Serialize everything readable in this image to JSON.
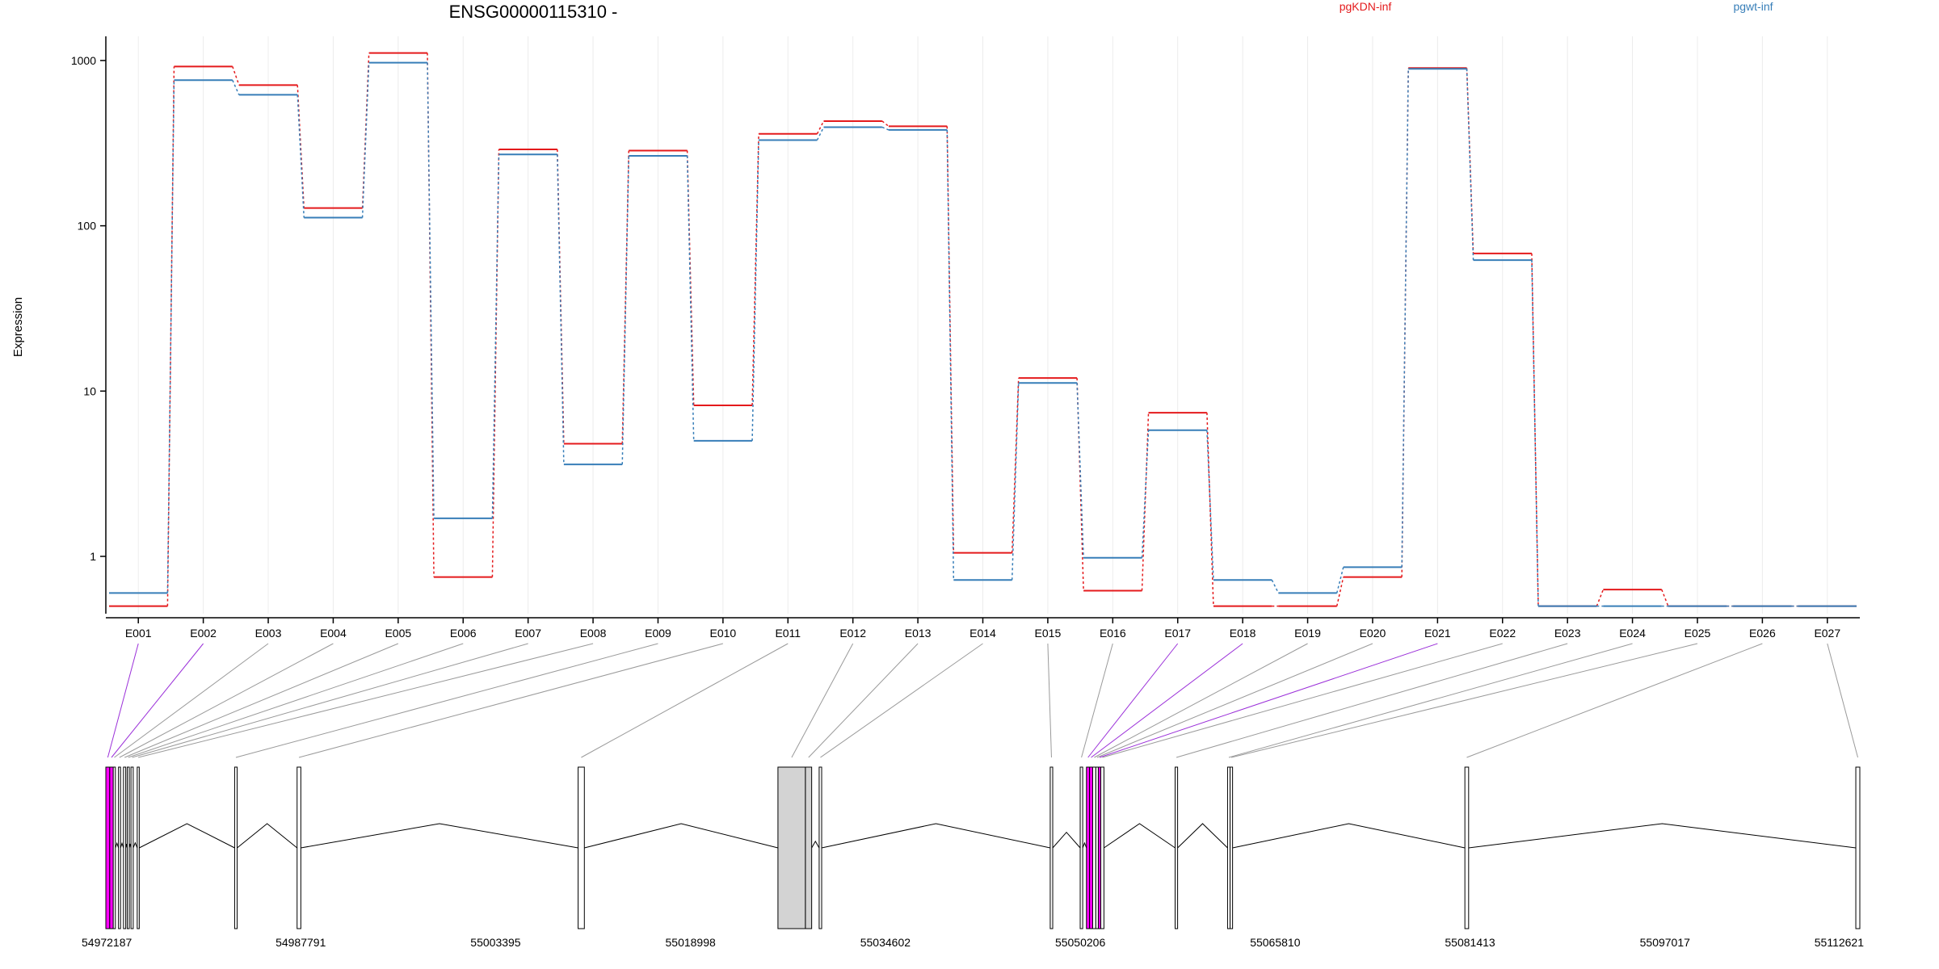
{
  "chart_data": [
    {
      "type": "line",
      "title": "ENSG00000115310 -",
      "ylabel": "Expression",
      "xlabel": "",
      "yscale": "log",
      "ylim": [
        0.45,
        1400
      ],
      "yticks": [
        "1",
        "10",
        "100",
        "1000"
      ],
      "ytick_values": [
        1,
        10,
        100,
        1000
      ],
      "grid": "vertical",
      "legend_position": "top-right",
      "categories": [
        "E001",
        "E002",
        "E003",
        "E004",
        "E005",
        "E006",
        "E007",
        "E008",
        "E009",
        "E010",
        "E011",
        "E012",
        "E013",
        "E014",
        "E015",
        "E016",
        "E017",
        "E018",
        "E019",
        "E020",
        "E021",
        "E022",
        "E023",
        "E024",
        "E025",
        "E026",
        "E027"
      ],
      "series": [
        {
          "name": "pgKDN-inf",
          "color": "#e41a1c",
          "values": [
            0.5,
            920,
            710,
            128,
            1110,
            0.75,
            290,
            4.8,
            285,
            8.2,
            360,
            430,
            400,
            1.05,
            12,
            0.62,
            7.4,
            0.5,
            0.5,
            0.75,
            900,
            68,
            0.5,
            0.63,
            0.5,
            0.5,
            0.5
          ]
        },
        {
          "name": "pgwt-inf",
          "color": "#377eb8",
          "values": [
            0.6,
            760,
            620,
            112,
            970,
            1.7,
            270,
            3.6,
            265,
            5,
            330,
            395,
            380,
            0.72,
            11.2,
            0.98,
            5.8,
            0.72,
            0.6,
            0.86,
            890,
            62,
            0.5,
            0.5,
            0.5,
            0.5,
            0.5
          ]
        }
      ]
    },
    {
      "type": "gene-structure",
      "xlim": [
        54972187,
        55112621
      ],
      "tick_labels": [
        "54972187",
        "54987791",
        "55003395",
        "55018998",
        "55034602",
        "55050206",
        "55065810",
        "55081413",
        "55097017",
        "55112621"
      ],
      "tick_values": [
        54972187,
        54987791,
        55003395,
        55018998,
        55034602,
        55050206,
        55065810,
        55081413,
        55097017,
        55112621
      ],
      "highlight_color": "#ff00ff",
      "intron_color": "#000000",
      "exons": [
        {
          "id": "E001",
          "start": 54972187,
          "end": 54972500,
          "fill": "#ff00ff"
        },
        {
          "id": "E002",
          "start": 54972500,
          "end": 54972780,
          "fill": "#ff00ff"
        },
        {
          "id": "E003",
          "start": 54972780,
          "end": 54972950,
          "fill": "#ffffff"
        },
        {
          "id": "E004",
          "start": 54973200,
          "end": 54973350,
          "fill": "#ffffff"
        },
        {
          "id": "E005",
          "start": 54973600,
          "end": 54973780,
          "fill": "#ffffff"
        },
        {
          "id": "E006",
          "start": 54973900,
          "end": 54974040,
          "fill": "#ffffff"
        },
        {
          "id": "E007",
          "start": 54974200,
          "end": 54974380,
          "fill": "#ffffff"
        },
        {
          "id": "E008",
          "start": 54974700,
          "end": 54974860,
          "fill": "#ffffff"
        },
        {
          "id": "E009",
          "start": 54982500,
          "end": 54982700,
          "fill": "#ffffff"
        },
        {
          "id": "E010",
          "start": 54987500,
          "end": 54987800,
          "fill": "#ffffff"
        },
        {
          "id": "E011",
          "start": 55010000,
          "end": 55010500,
          "fill": "#ffffff"
        },
        {
          "id": "E012",
          "start": 55026000,
          "end": 55028200,
          "fill": "#d3d3d3"
        },
        {
          "id": "E013",
          "start": 55028200,
          "end": 55028700,
          "fill": "#d3d3d3"
        },
        {
          "id": "E014",
          "start": 55029300,
          "end": 55029500,
          "fill": "#ffffff"
        },
        {
          "id": "E015",
          "start": 55047800,
          "end": 55048000,
          "fill": "#ffffff"
        },
        {
          "id": "E016",
          "start": 55050200,
          "end": 55050400,
          "fill": "#ffffff"
        },
        {
          "id": "E017",
          "start": 55050700,
          "end": 55050950,
          "fill": "#ff00ff"
        },
        {
          "id": "E018",
          "start": 55050950,
          "end": 55051200,
          "fill": "#ff00ff"
        },
        {
          "id": "E019",
          "start": 55051200,
          "end": 55051450,
          "fill": "#ffffff"
        },
        {
          "id": "E020",
          "start": 55051450,
          "end": 55051650,
          "fill": "#ffffff"
        },
        {
          "id": "E021",
          "start": 55051650,
          "end": 55051850,
          "fill": "#ff00ff"
        },
        {
          "id": "E022",
          "start": 55051850,
          "end": 55052100,
          "fill": "#ffffff"
        },
        {
          "id": "E023",
          "start": 55057800,
          "end": 55058000,
          "fill": "#ffffff"
        },
        {
          "id": "E024",
          "start": 55062000,
          "end": 55062200,
          "fill": "#ffffff"
        },
        {
          "id": "E025",
          "start": 55062200,
          "end": 55062400,
          "fill": "#ffffff"
        },
        {
          "id": "E026",
          "start": 55081000,
          "end": 55081300,
          "fill": "#ffffff"
        },
        {
          "id": "E027",
          "start": 55112300,
          "end": 55112621,
          "fill": "#ffffff"
        }
      ]
    }
  ]
}
